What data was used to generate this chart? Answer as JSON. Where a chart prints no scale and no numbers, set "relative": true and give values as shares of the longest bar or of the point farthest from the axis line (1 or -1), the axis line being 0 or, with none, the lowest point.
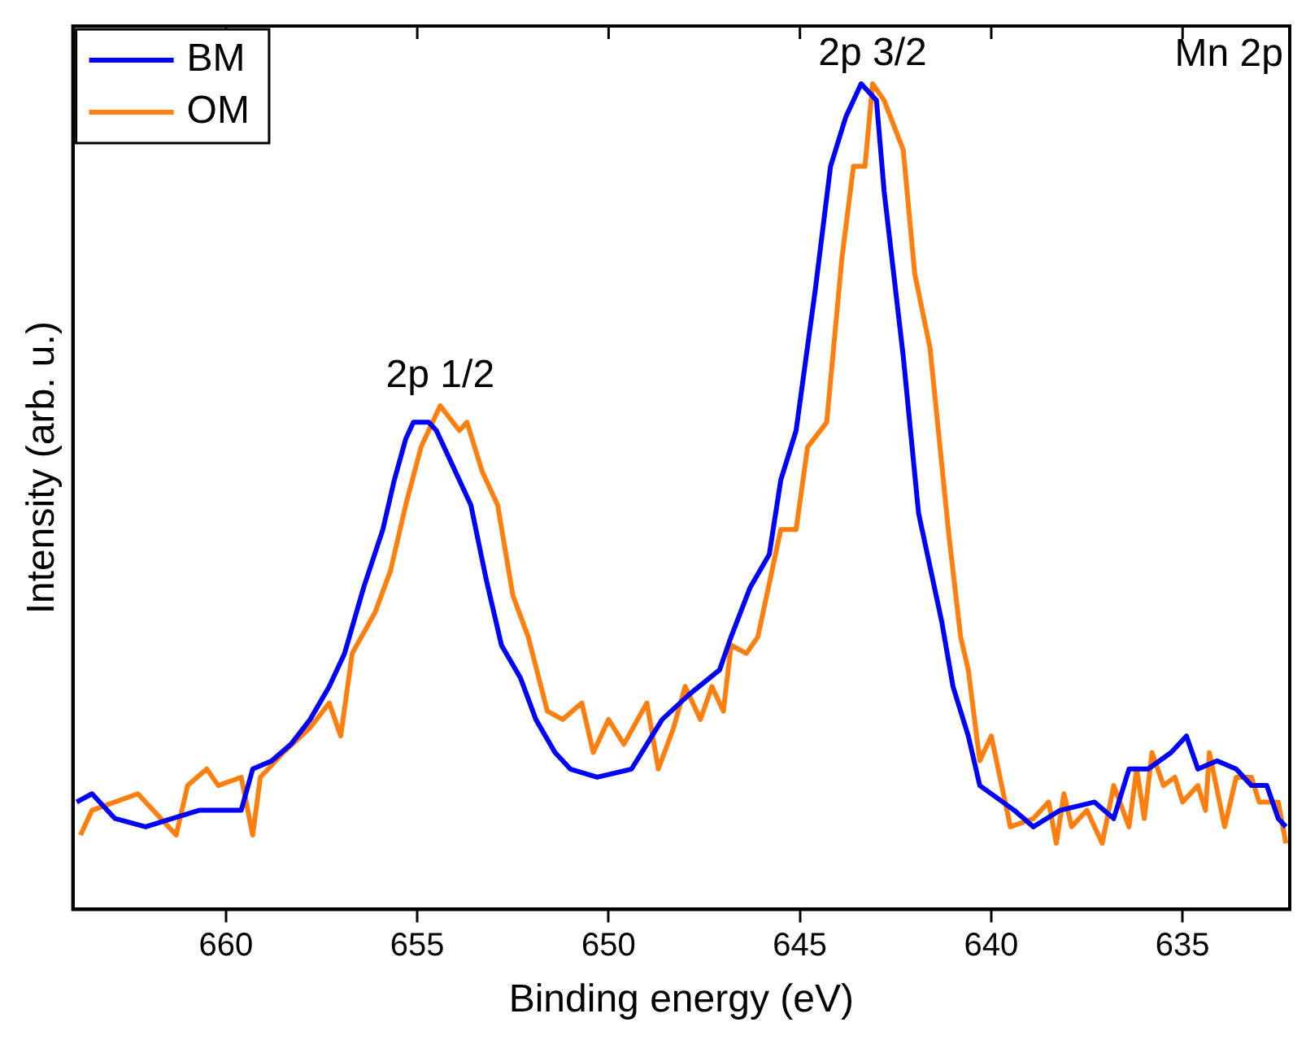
{
  "chart_data": {
    "type": "line",
    "xlabel": "Binding energy (eV)",
    "ylabel": "Intensity (arb. u.)",
    "relative": true,
    "xlim": [
      664,
      632.2
    ],
    "xticks": [
      660,
      655,
      650,
      645,
      640,
      635
    ],
    "legend": "top left",
    "grid": false,
    "marker": "none",
    "line_style": "solid",
    "annotations": [
      {
        "text": "2p 1/2",
        "x": 654.4,
        "y": 0.61
      },
      {
        "text": "2p 3/2",
        "x": 643.1,
        "y": 1.0
      },
      "Mn 2p"
    ],
    "series": [
      {
        "name": "BM",
        "color": "#0000ff",
        "x": [
          663.9,
          663.5,
          662.9,
          662.1,
          661.4,
          660.7,
          659.6,
          659.3,
          658.8,
          658.3,
          657.8,
          657.3,
          656.9,
          656.4,
          655.9,
          655.6,
          655.3,
          655.1,
          654.7,
          654.5,
          654.1,
          653.6,
          653.2,
          652.8,
          652.3,
          651.9,
          651.4,
          651.0,
          650.3,
          649.4,
          649.0,
          648.6,
          647.9,
          647.1,
          646.8,
          646.3,
          645.8,
          645.5,
          645.1,
          644.6,
          644.2,
          643.8,
          643.4,
          643.0,
          642.8,
          642.3,
          641.9,
          641.3,
          641.0,
          640.6,
          640.3,
          639.7,
          639.4,
          638.9,
          638.2,
          637.3,
          636.8,
          636.4,
          635.9,
          635.3,
          634.9,
          634.6,
          634.1,
          633.6,
          633.2,
          632.8,
          632.5,
          632.3
        ],
        "values": [
          0.13,
          0.14,
          0.11,
          0.1,
          0.11,
          0.12,
          0.12,
          0.17,
          0.18,
          0.2,
          0.23,
          0.27,
          0.31,
          0.39,
          0.46,
          0.52,
          0.57,
          0.59,
          0.59,
          0.58,
          0.54,
          0.49,
          0.4,
          0.32,
          0.28,
          0.23,
          0.19,
          0.17,
          0.16,
          0.17,
          0.2,
          0.23,
          0.26,
          0.29,
          0.33,
          0.39,
          0.43,
          0.52,
          0.58,
          0.75,
          0.9,
          0.96,
          1.0,
          0.98,
          0.87,
          0.67,
          0.48,
          0.35,
          0.27,
          0.21,
          0.15,
          0.13,
          0.12,
          0.1,
          0.12,
          0.13,
          0.11,
          0.17,
          0.17,
          0.19,
          0.21,
          0.17,
          0.18,
          0.17,
          0.15,
          0.15,
          0.11,
          0.1
        ]
      },
      {
        "name": "OM",
        "color": "#ff7f0e",
        "x": [
          663.8,
          663.5,
          662.9,
          662.3,
          661.7,
          661.3,
          661.0,
          660.5,
          660.2,
          659.6,
          659.3,
          659.1,
          658.5,
          657.8,
          657.3,
          657.0,
          656.7,
          656.1,
          655.7,
          655.3,
          654.9,
          654.6,
          654.4,
          653.9,
          653.7,
          653.3,
          652.9,
          652.5,
          652.1,
          651.6,
          651.2,
          650.7,
          650.4,
          650.0,
          649.6,
          649.0,
          648.7,
          648.3,
          648.0,
          647.6,
          647.3,
          647.0,
          646.8,
          646.4,
          646.1,
          645.5,
          645.1,
          644.8,
          644.3,
          643.9,
          643.6,
          643.3,
          643.1,
          642.8,
          642.3,
          642.0,
          641.6,
          641.1,
          640.8,
          640.6,
          640.3,
          640.0,
          639.5,
          638.9,
          638.5,
          638.3,
          638.1,
          637.9,
          637.5,
          637.1,
          636.8,
          636.4,
          636.2,
          636.0,
          635.8,
          635.5,
          635.2,
          635.0,
          634.6,
          634.4,
          634.3,
          633.9,
          633.6,
          633.2,
          633.0,
          632.5,
          632.3
        ],
        "values": [
          0.09,
          0.12,
          0.13,
          0.14,
          0.11,
          0.09,
          0.15,
          0.17,
          0.15,
          0.16,
          0.09,
          0.16,
          0.19,
          0.22,
          0.25,
          0.21,
          0.31,
          0.36,
          0.41,
          0.49,
          0.56,
          0.59,
          0.61,
          0.58,
          0.59,
          0.53,
          0.49,
          0.38,
          0.33,
          0.24,
          0.23,
          0.25,
          0.19,
          0.23,
          0.2,
          0.25,
          0.17,
          0.22,
          0.27,
          0.23,
          0.27,
          0.24,
          0.32,
          0.31,
          0.33,
          0.46,
          0.46,
          0.56,
          0.59,
          0.79,
          0.9,
          0.9,
          1.0,
          0.98,
          0.92,
          0.77,
          0.68,
          0.45,
          0.33,
          0.29,
          0.18,
          0.21,
          0.1,
          0.11,
          0.13,
          0.08,
          0.14,
          0.1,
          0.12,
          0.08,
          0.15,
          0.1,
          0.17,
          0.11,
          0.19,
          0.15,
          0.16,
          0.13,
          0.15,
          0.12,
          0.19,
          0.1,
          0.16,
          0.16,
          0.13,
          0.13,
          0.08
        ]
      }
    ]
  }
}
